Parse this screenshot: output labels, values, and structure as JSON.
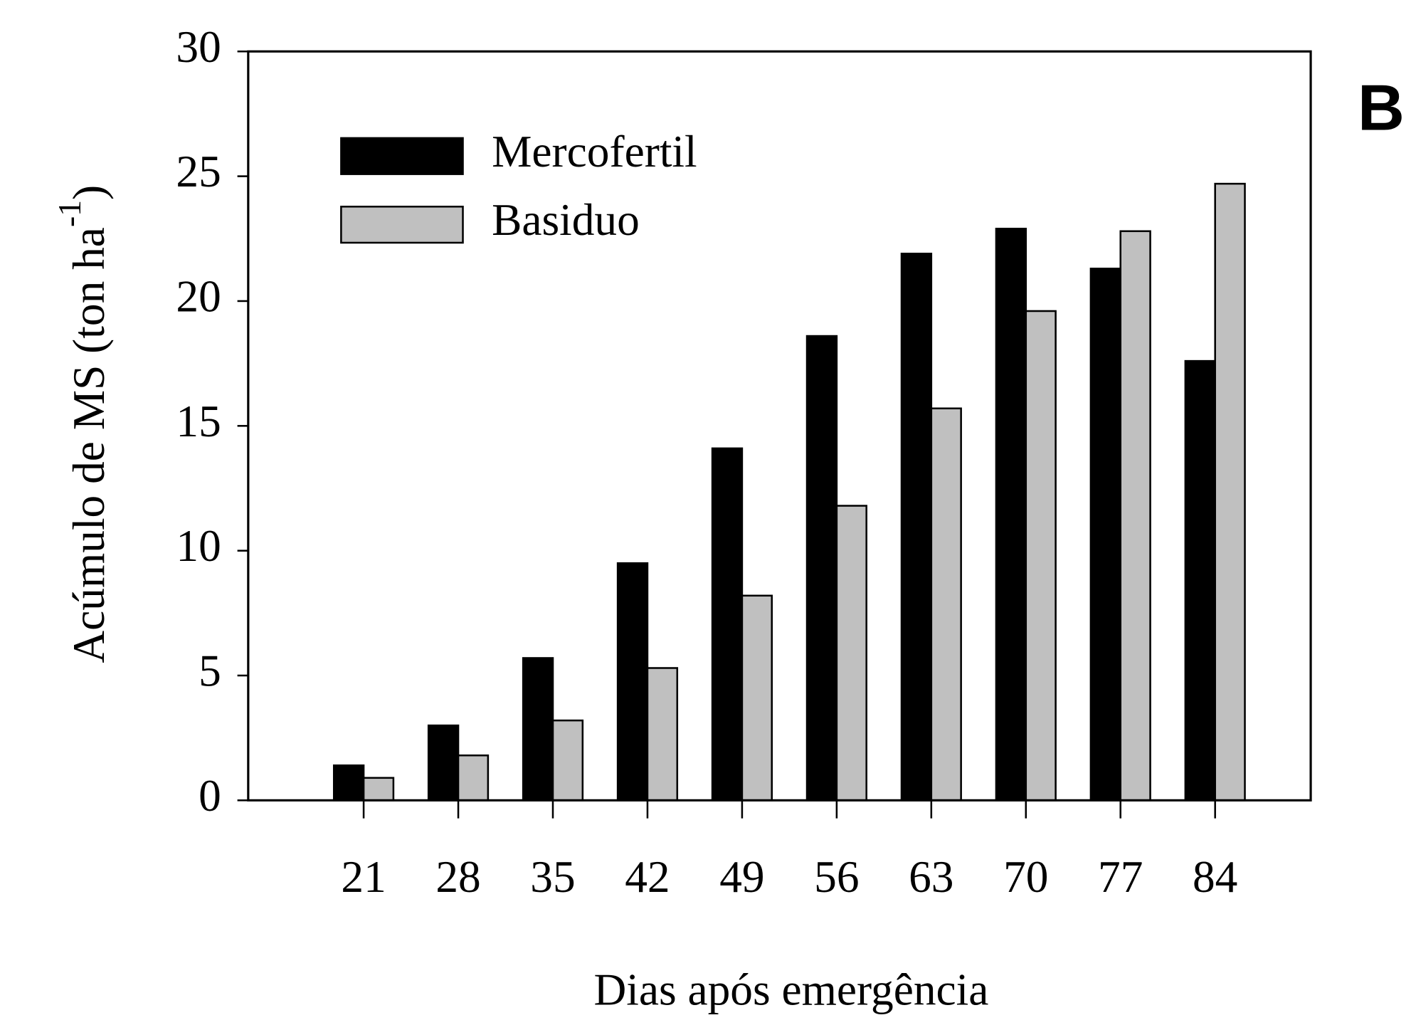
{
  "chart_data": {
    "type": "bar",
    "panel_label": "B",
    "x_label": "Dias após emergência",
    "y_label": {
      "text": "Acúmulo de MS (ton ha",
      "superscript": "-1",
      "suffix": ")"
    },
    "categories": [
      "21",
      "28",
      "35",
      "42",
      "49",
      "56",
      "63",
      "70",
      "77",
      "84"
    ],
    "series": [
      {
        "name": "Mercofertil",
        "color": "#000000",
        "values": [
          1.4,
          3.0,
          5.7,
          9.5,
          14.1,
          18.6,
          21.9,
          22.9,
          21.3,
          17.6
        ]
      },
      {
        "name": "Basiduo",
        "color": "#c0c0c0",
        "values": [
          0.9,
          1.8,
          3.2,
          5.3,
          8.2,
          11.8,
          15.7,
          19.6,
          22.8,
          24.7
        ]
      }
    ],
    "ylim": [
      0,
      30
    ],
    "yticks": [
      0,
      5,
      10,
      15,
      20,
      25,
      30
    ],
    "grid": false,
    "legend": "upper left"
  }
}
